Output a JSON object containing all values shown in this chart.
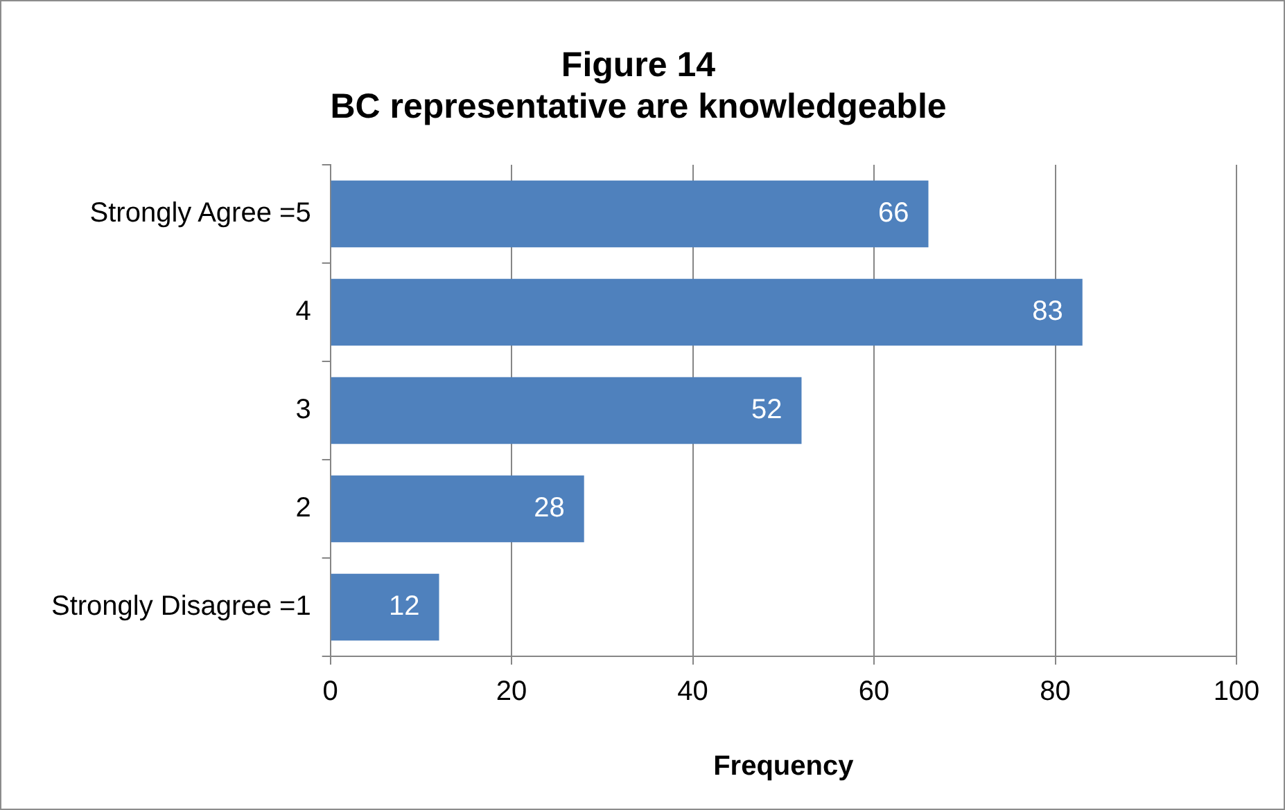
{
  "chart_data": {
    "type": "bar",
    "orientation": "horizontal",
    "title": "Figure 14\nBC representative are knowledgeable",
    "xlabel": "Frequency",
    "categories": [
      "Strongly Agree =5",
      "4",
      "3",
      "2",
      "Strongly Disagree =1"
    ],
    "values": [
      66,
      83,
      52,
      28,
      12
    ],
    "color": "#4f81bd",
    "xlim": [
      0,
      100
    ],
    "xticks": [
      0,
      20,
      40,
      60,
      80,
      100
    ],
    "grid": "x",
    "data_labels": true,
    "legend": false
  }
}
